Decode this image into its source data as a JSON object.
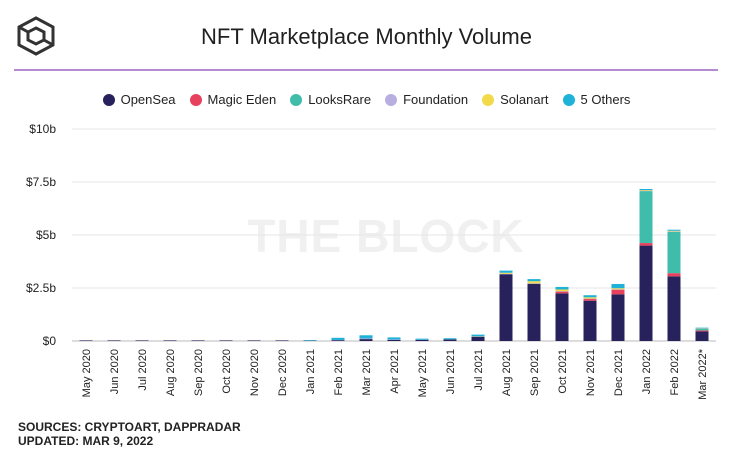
{
  "header": {
    "title": "NFT Marketplace Monthly Volume",
    "logo_icon": "cube-logo-icon"
  },
  "watermark": "THE BLOCK",
  "footer": {
    "sources": "SOURCES: CRYPTOART, DAPPRADAR",
    "updated": "UPDATED: MAR 9, 2022"
  },
  "colors": {
    "accent_line": "#b48ad1",
    "grid": "#e6e6e6"
  },
  "chart_data": {
    "type": "bar",
    "stacked": true,
    "title": "NFT Marketplace Monthly Volume",
    "xlabel": "",
    "ylabel": "",
    "ylim": [
      0,
      10
    ],
    "yticks": [
      0,
      2.5,
      5,
      7.5,
      10
    ],
    "ytick_labels": [
      "$0",
      "$2.5b",
      "$5b",
      "$7.5b",
      "$10b"
    ],
    "grid": true,
    "legend_position": "top-center",
    "categories": [
      "May 2020",
      "Jun 2020",
      "Jul 2020",
      "Aug 2020",
      "Sep 2020",
      "Oct 2020",
      "Nov 2020",
      "Dec 2020",
      "Jan 2021",
      "Feb 2021",
      "Mar 2021",
      "Apr 2021",
      "May 2021",
      "Jun 2021",
      "Jul 2021",
      "Aug 2021",
      "Sep 2021",
      "Oct 2021",
      "Nov 2021",
      "Dec 2021",
      "Jan 2022",
      "Feb 2022",
      "Mar 2022*"
    ],
    "series": [
      {
        "name": "OpenSea",
        "color": "#27215c",
        "values": [
          0.002,
          0.002,
          0.003,
          0.003,
          0.005,
          0.004,
          0.003,
          0.005,
          0.008,
          0.04,
          0.09,
          0.05,
          0.05,
          0.07,
          0.2,
          3.15,
          2.7,
          2.25,
          1.9,
          2.2,
          4.5,
          3.05,
          0.45
        ]
      },
      {
        "name": "Magic Eden",
        "color": "#e8415e",
        "values": [
          0,
          0,
          0,
          0,
          0,
          0,
          0,
          0,
          0,
          0,
          0,
          0,
          0,
          0,
          0,
          0,
          0,
          0.08,
          0.08,
          0.22,
          0.12,
          0.15,
          0.05
        ]
      },
      {
        "name": "LooksRare",
        "color": "#3fbcaa",
        "values": [
          0,
          0,
          0,
          0,
          0,
          0,
          0,
          0,
          0,
          0,
          0,
          0,
          0,
          0,
          0,
          0,
          0,
          0,
          0,
          0,
          2.45,
          1.95,
          0.08
        ]
      },
      {
        "name": "Foundation",
        "color": "#b8aee0",
        "values": [
          0,
          0,
          0,
          0,
          0,
          0,
          0,
          0,
          0,
          0.01,
          0.03,
          0.02,
          0.01,
          0.01,
          0.01,
          0.02,
          0.02,
          0.02,
          0.02,
          0.02,
          0.02,
          0.02,
          0.01
        ]
      },
      {
        "name": "Solanart",
        "color": "#f2da4a",
        "values": [
          0,
          0,
          0,
          0,
          0,
          0,
          0,
          0,
          0,
          0,
          0,
          0,
          0,
          0,
          0.01,
          0.05,
          0.1,
          0.08,
          0.06,
          0.05,
          0.03,
          0.03,
          0.01
        ]
      },
      {
        "name": "5 Others",
        "color": "#1fb2d8",
        "values": [
          0,
          0,
          0,
          0,
          0,
          0,
          0,
          0,
          0.01,
          0.1,
          0.15,
          0.1,
          0.05,
          0.05,
          0.08,
          0.1,
          0.1,
          0.12,
          0.1,
          0.2,
          0.05,
          0.05,
          0.02
        ]
      }
    ]
  }
}
